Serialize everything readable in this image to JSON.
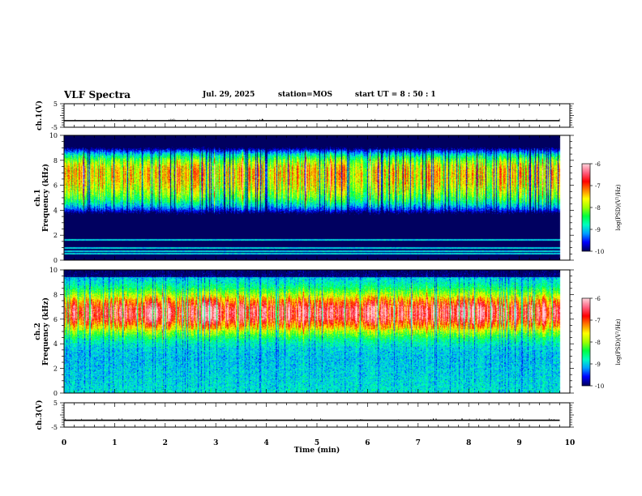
{
  "header": {
    "title": "VLF Spectra",
    "date": "Jul. 29, 2025",
    "station": "station=MOS",
    "start": "start UT =  8 : 50 : 1"
  },
  "chart_data": {
    "type": "heatmap",
    "title": "VLF Spectra",
    "xlabel": "Time (min)",
    "xlim": [
      0,
      10
    ],
    "x_ticks": [
      "0",
      "1",
      "2",
      "3",
      "4",
      "5",
      "6",
      "7",
      "8",
      "9",
      "10"
    ],
    "panels": [
      {
        "name": "ch1-voltage",
        "type": "line",
        "ylabel": "ch.1(V)",
        "ylim": [
          -5,
          5
        ],
        "y_ticks": [
          "5",
          "-5"
        ],
        "level": -2.2,
        "data_until_min": 9.8
      },
      {
        "name": "ch1-spectrogram",
        "type": "heatmap",
        "ylabel": "ch.1 Frequency (kHz)",
        "ylim": [
          0,
          10
        ],
        "y_ticks": [
          "0",
          "2",
          "4",
          "6",
          "8",
          "10"
        ],
        "band_khz": [
          3.5,
          9.2
        ],
        "peak_khz": 7.2,
        "peak_level": -7.6,
        "lines_khz": [
          1.6,
          1.0,
          0.7,
          0.5
        ],
        "data_until_min": 9.8
      },
      {
        "name": "ch2-spectrogram",
        "type": "heatmap",
        "ylabel": "ch.2 Frequency (kHz)",
        "ylim": [
          0,
          10
        ],
        "y_ticks": [
          "0",
          "2",
          "4",
          "6",
          "8",
          "10"
        ],
        "band_khz": [
          0,
          9.8
        ],
        "peak_khz": 6.5,
        "peak_level": -7.0,
        "data_until_min": 9.8
      },
      {
        "name": "ch3-voltage",
        "type": "line",
        "ylabel": "ch.3(V)",
        "ylim": [
          -5,
          5
        ],
        "y_ticks": [
          "5",
          "-5"
        ],
        "level": -2.2,
        "data_until_min": 9.8
      }
    ],
    "colorbar": {
      "label": "log(PSD)(V²/Hz)",
      "range": [
        -10,
        -6
      ],
      "ticks": [
        "-6",
        "-7",
        "-8",
        "-9",
        "-10"
      ],
      "colors": [
        "#000060",
        "#0000ff",
        "#00a0ff",
        "#00ffc0",
        "#00ff40",
        "#a0ff00",
        "#ffff00",
        "#ff8000",
        "#ff0000",
        "#ff6080",
        "#ffd0d8"
      ]
    }
  }
}
